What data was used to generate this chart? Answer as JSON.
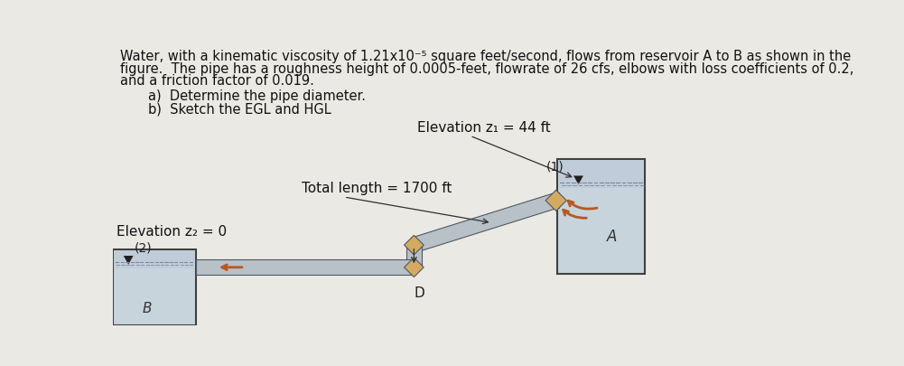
{
  "bg_color": "#ebe9e4",
  "text_color": "#111111",
  "title_lines": [
    "Water, with a kinematic viscosity of 1.21x10⁻⁵ square feet/second, flows from reservoir A to B as shown in the",
    "figure.  The pipe has a roughness height of 0.0005-feet, flowrate of 26 cfs, elbows with loss coefficients of 0.2,",
    "and a friction factor of 0.019."
  ],
  "sub_items": [
    "a)  Determine the pipe diameter.",
    "b)  Sketch the EGL and HGL"
  ],
  "label_elev1": "Elevation z₁ = 44 ft",
  "label_elev2": "Elevation z₂ = 0",
  "label_total_len": "Total length = 1700 ft",
  "label_A": "A",
  "label_B": "B",
  "label_D": "D",
  "label_1": "(1)",
  "label_2": "(2)",
  "pipe_color": "#b8c0c8",
  "pipe_outline": "#505860",
  "elbow_color": "#d4aa60",
  "reservoir_wall": "#505050",
  "reservoir_water": "#b8c8d4",
  "arrow_color": "#b85820",
  "font_size_body": 10.5,
  "font_size_label": 10,
  "font_size_small": 9
}
